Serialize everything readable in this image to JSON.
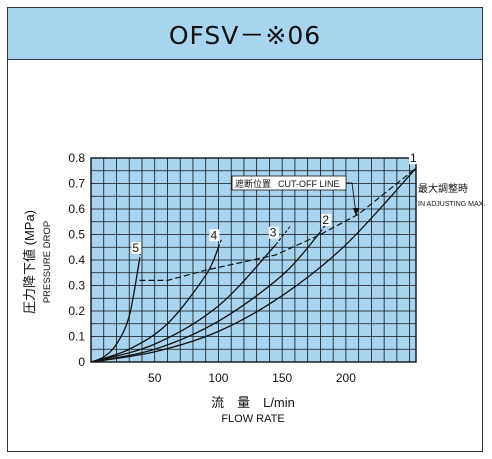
{
  "header": {
    "title": "OFSV－※06"
  },
  "chart_data": {
    "type": "line",
    "ylabel_jp": "圧力降下値 (MPa)",
    "ylabel_en": "PRESSURE DROP",
    "xlabel_jp": "流　量　L/min",
    "xlabel_en": "FLOW RATE",
    "xlim": [
      0,
      255
    ],
    "ylim": [
      0,
      0.8
    ],
    "x_ticks": [
      "50",
      "100",
      "150",
      "200"
    ],
    "y_ticks": [
      "0",
      "0.1",
      "0.2",
      "0.3",
      "0.4",
      "0.5",
      "0.6",
      "0.7",
      "0.8"
    ],
    "grid": true,
    "series": [
      {
        "name": "1",
        "points": [
          [
            0,
            0
          ],
          [
            50,
            0.04
          ],
          [
            100,
            0.12
          ],
          [
            150,
            0.26
          ],
          [
            200,
            0.46
          ],
          [
            255,
            0.76
          ]
        ]
      },
      {
        "name": "2",
        "points": [
          [
            0,
            0
          ],
          [
            50,
            0.05
          ],
          [
            100,
            0.16
          ],
          [
            150,
            0.34
          ],
          [
            180,
            0.51
          ]
        ]
      },
      {
        "name": "3",
        "points": [
          [
            0,
            0
          ],
          [
            50,
            0.07
          ],
          [
            100,
            0.22
          ],
          [
            145,
            0.46
          ]
        ]
      },
      {
        "name": "4",
        "points": [
          [
            0,
            0
          ],
          [
            30,
            0.05
          ],
          [
            60,
            0.15
          ],
          [
            90,
            0.34
          ],
          [
            100,
            0.45
          ]
        ]
      },
      {
        "name": "5",
        "points": [
          [
            0,
            0
          ],
          [
            10,
            0.02
          ],
          [
            20,
            0.07
          ],
          [
            30,
            0.18
          ],
          [
            38,
            0.4
          ]
        ]
      }
    ],
    "cutoff_line": {
      "label_jp": "遮断位置",
      "label_en": "CUT-OFF LINE",
      "points": [
        [
          38,
          0.32
        ],
        [
          60,
          0.32
        ],
        [
          90,
          0.36
        ],
        [
          145,
          0.42
        ],
        [
          180,
          0.5
        ],
        [
          210,
          0.58
        ],
        [
          255,
          0.76
        ]
      ]
    },
    "max_adjust": {
      "label_jp": "最大調整時",
      "label_en": "IN ADJUSTING MAX."
    }
  }
}
